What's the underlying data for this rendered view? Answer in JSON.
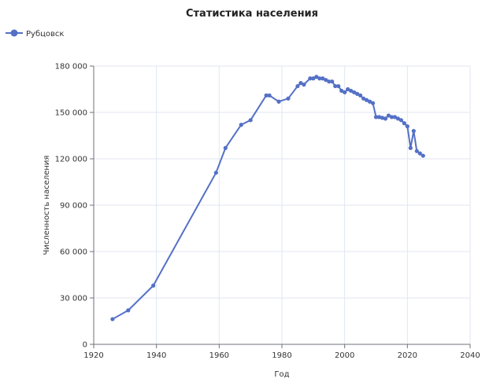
{
  "chart_data": {
    "type": "line",
    "title": "Статистика населения",
    "xlabel": "Год",
    "ylabel": "Численность населения",
    "xlim": [
      1920,
      2040
    ],
    "ylim": [
      0,
      180000
    ],
    "x_ticks": [
      1920,
      1940,
      1960,
      1980,
      2000,
      2020,
      2040
    ],
    "x_tick_labels": [
      "1920",
      "1940",
      "1960",
      "1980",
      "2000",
      "2020",
      "2040"
    ],
    "y_ticks": [
      0,
      30000,
      60000,
      90000,
      120000,
      150000,
      180000
    ],
    "y_tick_labels": [
      "0",
      "30 000",
      "60 000",
      "90 000",
      "120 000",
      "150 000",
      "180 000"
    ],
    "grid": true,
    "legend_position": "top-left",
    "series": [
      {
        "name": "Рубцовск",
        "color": "#5470c6",
        "points": [
          [
            1926,
            16300
          ],
          [
            1931,
            22000
          ],
          [
            1939,
            38000
          ],
          [
            1959,
            111000
          ],
          [
            1962,
            127000
          ],
          [
            1967,
            142000
          ],
          [
            1970,
            145000
          ],
          [
            1975,
            161000
          ],
          [
            1976,
            161000
          ],
          [
            1979,
            157000
          ],
          [
            1982,
            159000
          ],
          [
            1985,
            167000
          ],
          [
            1986,
            169000
          ],
          [
            1987,
            168000
          ],
          [
            1989,
            172000
          ],
          [
            1990,
            172000
          ],
          [
            1991,
            173000
          ],
          [
            1992,
            172000
          ],
          [
            1993,
            172000
          ],
          [
            1994,
            171000
          ],
          [
            1995,
            170000
          ],
          [
            1996,
            170000
          ],
          [
            1997,
            167000
          ],
          [
            1998,
            167000
          ],
          [
            1999,
            164000
          ],
          [
            2000,
            163000
          ],
          [
            2001,
            165000
          ],
          [
            2002,
            164000
          ],
          [
            2003,
            163000
          ],
          [
            2004,
            162000
          ],
          [
            2005,
            161000
          ],
          [
            2006,
            159000
          ],
          [
            2007,
            158000
          ],
          [
            2008,
            157000
          ],
          [
            2009,
            156000
          ],
          [
            2010,
            147000
          ],
          [
            2011,
            147000
          ],
          [
            2012,
            146500
          ],
          [
            2013,
            146000
          ],
          [
            2014,
            148000
          ],
          [
            2015,
            147000
          ],
          [
            2016,
            147000
          ],
          [
            2017,
            146000
          ],
          [
            2018,
            145000
          ],
          [
            2019,
            143000
          ],
          [
            2020,
            141000
          ],
          [
            2021,
            127000
          ],
          [
            2022,
            138000
          ],
          [
            2023,
            125000
          ],
          [
            2024,
            123500
          ],
          [
            2025,
            122000
          ]
        ]
      }
    ]
  }
}
